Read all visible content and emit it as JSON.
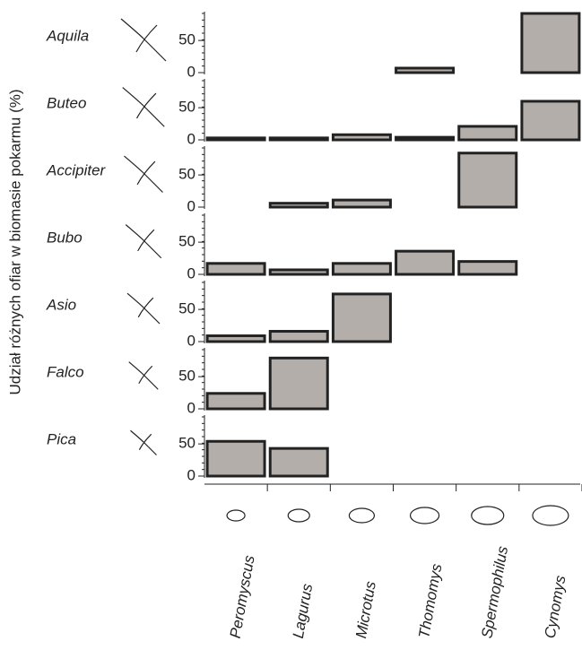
{
  "chart_data": {
    "type": "bar",
    "ylabel": "Udział różnych ofiar w biomasie pokarmu (%)",
    "categories": [
      "Peromyscus",
      "Lagurus",
      "Microtus",
      "Thomomys",
      "Spermophilus",
      "Cynomys"
    ],
    "ylim": [
      0,
      92
    ],
    "yticks": [
      0,
      50
    ],
    "color": "#b3aeaa",
    "series": [
      {
        "name": "Aquila",
        "values": [
          null,
          null,
          null,
          7,
          null,
          92
        ]
      },
      {
        "name": "Buteo",
        "values": [
          3,
          3,
          8,
          4,
          21,
          60
        ]
      },
      {
        "name": "Accipiter",
        "values": [
          null,
          6,
          11,
          null,
          84,
          null
        ]
      },
      {
        "name": "Bubo",
        "values": [
          17,
          7,
          17,
          36,
          20,
          null
        ]
      },
      {
        "name": "Asio",
        "values": [
          9,
          16,
          74,
          null,
          null,
          null
        ]
      },
      {
        "name": "Falco",
        "values": [
          24,
          79,
          null,
          null,
          null,
          null
        ]
      },
      {
        "name": "Pica",
        "values": [
          54,
          43,
          null,
          null,
          null,
          null
        ]
      }
    ]
  }
}
